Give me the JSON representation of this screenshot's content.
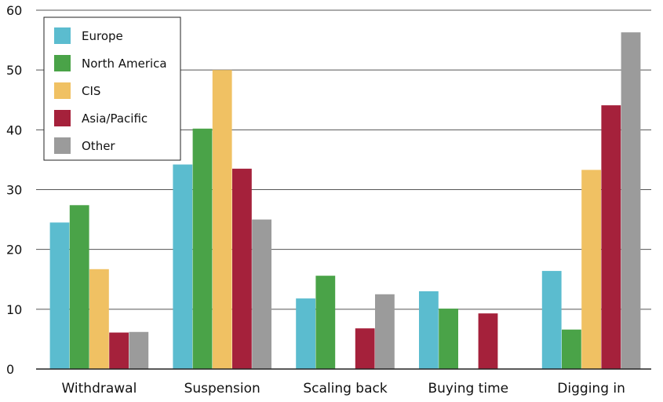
{
  "chart_data": {
    "type": "bar",
    "categories": [
      "Withdrawal",
      "Suspension",
      "Scaling back",
      "Buying time",
      "Digging in"
    ],
    "series": [
      {
        "name": "Europe",
        "color": "#5bbccf",
        "values": [
          24.5,
          34.2,
          11.8,
          13.0,
          16.4
        ]
      },
      {
        "name": "North America",
        "color": "#4aa348",
        "values": [
          27.4,
          40.2,
          15.6,
          10.1,
          6.6
        ]
      },
      {
        "name": "CIS",
        "color": "#f0c163",
        "values": [
          16.7,
          50.0,
          0,
          0,
          33.3
        ]
      },
      {
        "name": "Asia/Pacific",
        "color": "#a5213b",
        "values": [
          6.1,
          33.5,
          6.8,
          9.3,
          44.1
        ]
      },
      {
        "name": "Other",
        "color": "#9b9b9b",
        "values": [
          6.2,
          25.0,
          12.5,
          0,
          56.3
        ]
      }
    ],
    "ylim": [
      0,
      60
    ],
    "yticks": [
      0,
      10,
      20,
      30,
      40,
      50,
      60
    ],
    "grid": true,
    "legend_position": "top-left",
    "title": "",
    "xlabel": "",
    "ylabel": ""
  }
}
